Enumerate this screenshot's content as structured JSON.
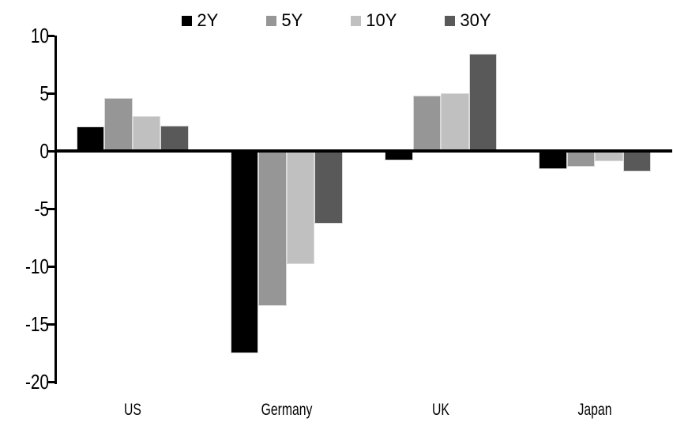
{
  "chart_data": {
    "type": "bar",
    "title": "",
    "categories": [
      "US",
      "Germany",
      "UK",
      "Japan"
    ],
    "series": [
      {
        "name": "2Y",
        "color": "#000000",
        "values": [
          2.1,
          -17.5,
          -0.8,
          -1.6
        ]
      },
      {
        "name": "5Y",
        "color": "#969696",
        "values": [
          4.6,
          -13.4,
          4.8,
          -1.4
        ]
      },
      {
        "name": "10Y",
        "color": "#c0c0c0",
        "values": [
          3.0,
          -9.8,
          5.0,
          -0.9
        ]
      },
      {
        "name": "30Y",
        "color": "#595959",
        "values": [
          2.2,
          -6.3,
          8.4,
          -1.8
        ]
      }
    ],
    "ylim": [
      -20,
      10
    ],
    "yticks": [
      10,
      5,
      0,
      -5,
      -10,
      -15,
      -20
    ],
    "xlabel": "",
    "ylabel": "",
    "grid": false,
    "legend_position": "top-center",
    "axis_color": "#000000",
    "background_color": "#ffffff"
  }
}
